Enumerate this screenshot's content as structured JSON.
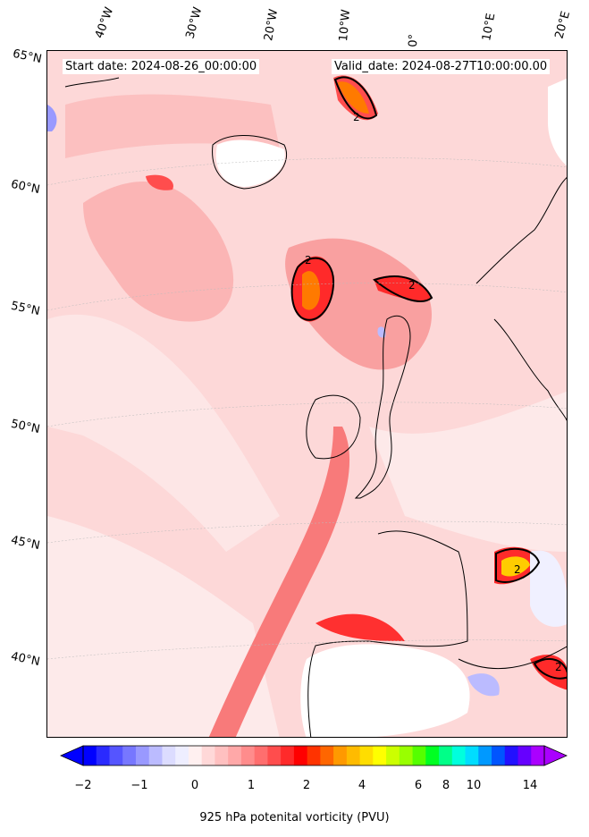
{
  "header": {
    "start_date": "Start date: 2024-08-26_00:00:00",
    "valid_date": "Valid_date: 2024-08-27T10:00:00.00"
  },
  "map": {
    "longitude_labels": [
      "40°W",
      "30°W",
      "20°W",
      "10°W",
      "0°",
      "10°E",
      "20°E"
    ],
    "latitude_labels": [
      "65°N",
      "60°N",
      "55°N",
      "50°N",
      "45°N",
      "40°N"
    ],
    "contour_label": "2"
  },
  "colorbar": {
    "title": "925 hPa potenital vorticity (PVU)",
    "tick_labels": [
      "−2",
      "−1",
      "0",
      "1",
      "2",
      "4",
      "6",
      "8",
      "10",
      "14"
    ],
    "colors": [
      "#0000ff",
      "#2a2aff",
      "#5555ff",
      "#7777ff",
      "#9999ff",
      "#bbbbff",
      "#dcdcff",
      "#eeeeff",
      "#fff0f0",
      "#ffd8d8",
      "#ffc0c0",
      "#ffa8a8",
      "#ff8c8c",
      "#ff6e6e",
      "#ff4d4d",
      "#ff2a2a",
      "#ff0000",
      "#ff3300",
      "#ff6600",
      "#ff9900",
      "#ffbb00",
      "#ffdd00",
      "#ffff00",
      "#ccff00",
      "#99ff00",
      "#55ff00",
      "#00ff22",
      "#00ff88",
      "#00ffdd",
      "#00ddff",
      "#0099ff",
      "#0055ff",
      "#2211ff",
      "#6600ff",
      "#aa00ff"
    ]
  }
}
